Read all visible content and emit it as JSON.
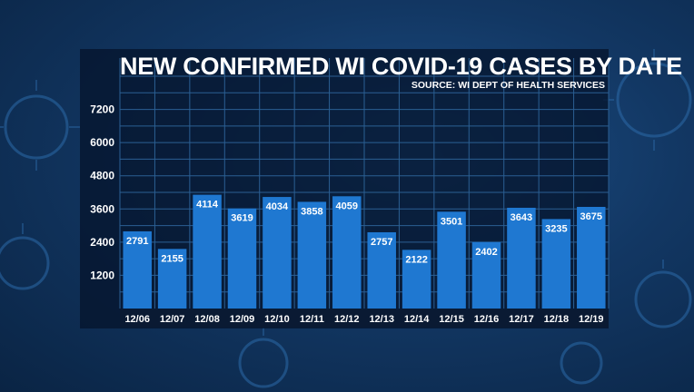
{
  "chart_data": {
    "type": "bar",
    "title": "NEW CONFIRMED WI COVID-19 CASES BY DATE",
    "subtitle": "SOURCE: WI DEPT OF HEALTH SERVICES",
    "categories": [
      "12/06",
      "12/07",
      "12/08",
      "12/09",
      "12/10",
      "12/11",
      "12/12",
      "12/13",
      "12/14",
      "12/15",
      "12/16",
      "12/17",
      "12/18",
      "12/19"
    ],
    "values": [
      2791,
      2155,
      4114,
      3619,
      4034,
      3858,
      4059,
      2757,
      2122,
      3501,
      2402,
      3643,
      3235,
      3675
    ],
    "yticks": [
      1200,
      2400,
      3600,
      4800,
      6000,
      7200
    ],
    "ylim": [
      0,
      8400
    ],
    "grid": true,
    "bar_color": "#1f78d1",
    "text_color": "#ffffff"
  }
}
